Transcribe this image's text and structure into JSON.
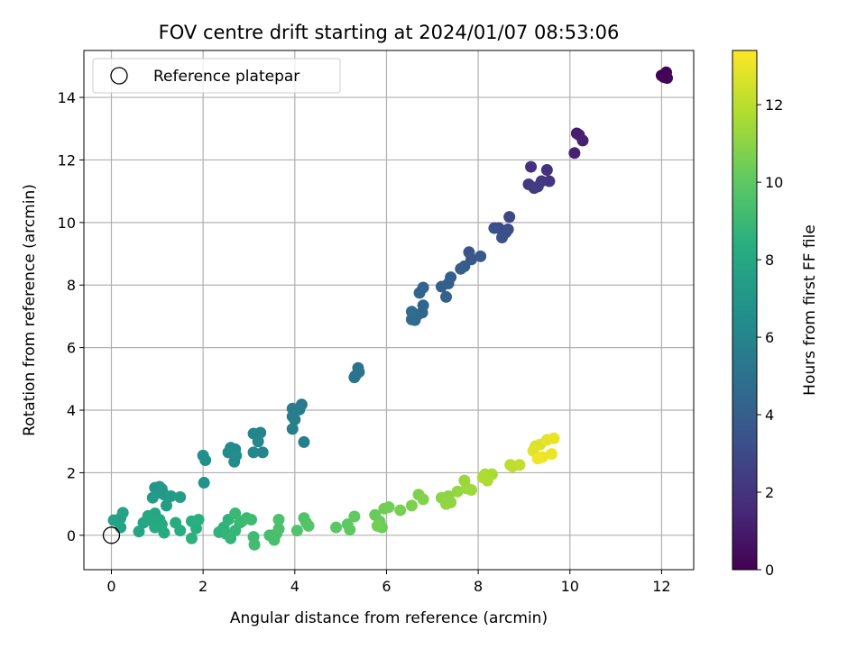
{
  "chart_data": {
    "type": "scatter",
    "title": "FOV centre drift starting at 2024/01/07 08:53:06",
    "xlabel": "Angular distance from reference (arcmin)",
    "ylabel": "Rotation from reference (arcmin)",
    "xlim": [
      -0.6,
      12.7
    ],
    "ylim": [
      -1.1,
      15.5
    ],
    "xticks": [
      "0",
      "2",
      "4",
      "6",
      "8",
      "10",
      "12"
    ],
    "yticks": [
      "0",
      "2",
      "4",
      "6",
      "8",
      "10",
      "12",
      "14"
    ],
    "grid": true,
    "legend": {
      "position": "top-left",
      "label": "Reference platepar"
    },
    "reference_point": {
      "x": 0,
      "y": 0
    },
    "colorbar": {
      "label": "Hours from first FF file",
      "range": [
        0,
        13.4
      ],
      "ticks": [
        "0",
        "2",
        "4",
        "6",
        "8",
        "10",
        "12"
      ],
      "colormap": "viridis"
    },
    "series": [
      {
        "points": [
          [
            12.0,
            14.7,
            0.0
          ],
          [
            12.1,
            14.8,
            0.1
          ],
          [
            12.05,
            14.65,
            0.15
          ],
          [
            12.12,
            14.62,
            0.2
          ],
          [
            10.15,
            12.85,
            1.0
          ],
          [
            10.2,
            12.8,
            1.1
          ],
          [
            10.28,
            12.62,
            1.2
          ],
          [
            10.1,
            12.22,
            1.3
          ],
          [
            9.15,
            11.78,
            1.8
          ],
          [
            9.5,
            11.68,
            1.9
          ],
          [
            9.55,
            11.32,
            2.0
          ],
          [
            9.38,
            11.32,
            2.1
          ],
          [
            9.1,
            11.22,
            2.2
          ],
          [
            9.22,
            11.1,
            2.3
          ],
          [
            9.3,
            11.15,
            2.35
          ],
          [
            8.68,
            10.18,
            2.9
          ],
          [
            8.45,
            9.82,
            3.0
          ],
          [
            8.65,
            9.78,
            3.1
          ],
          [
            8.6,
            9.68,
            3.2
          ],
          [
            8.52,
            9.52,
            3.25
          ],
          [
            8.35,
            9.82,
            3.3
          ],
          [
            7.8,
            9.05,
            3.5
          ],
          [
            7.85,
            8.82,
            3.6
          ],
          [
            8.05,
            8.92,
            3.7
          ],
          [
            7.7,
            8.6,
            3.8
          ],
          [
            7.62,
            8.52,
            3.9
          ],
          [
            7.4,
            8.25,
            4.0
          ],
          [
            7.35,
            8.05,
            4.1
          ],
          [
            7.2,
            7.95,
            4.15
          ],
          [
            7.3,
            7.62,
            4.2
          ],
          [
            6.8,
            7.92,
            4.3
          ],
          [
            6.72,
            7.75,
            4.35
          ],
          [
            6.8,
            7.35,
            4.4
          ],
          [
            6.78,
            7.12,
            4.45
          ],
          [
            6.68,
            7.05,
            4.5
          ],
          [
            6.55,
            6.9,
            4.6
          ],
          [
            6.62,
            6.88,
            4.65
          ],
          [
            6.55,
            7.15,
            4.7
          ],
          [
            5.32,
            5.1,
            5.0
          ],
          [
            5.38,
            5.35,
            5.05
          ],
          [
            5.4,
            5.22,
            5.1
          ],
          [
            5.3,
            5.05,
            5.15
          ],
          [
            4.15,
            4.18,
            5.4
          ],
          [
            3.95,
            4.05,
            5.5
          ],
          [
            4.1,
            4.02,
            5.55
          ],
          [
            3.95,
            3.8,
            5.6
          ],
          [
            4.0,
            3.7,
            5.65
          ],
          [
            3.95,
            3.4,
            5.7
          ],
          [
            4.2,
            2.98,
            5.75
          ],
          [
            3.25,
            3.28,
            6.0
          ],
          [
            3.1,
            3.25,
            6.05
          ],
          [
            3.2,
            3.0,
            6.1
          ],
          [
            3.3,
            2.65,
            6.15
          ],
          [
            3.1,
            2.65,
            6.2
          ],
          [
            2.6,
            2.8,
            6.3
          ],
          [
            2.7,
            2.75,
            6.35
          ],
          [
            2.55,
            2.65,
            6.4
          ],
          [
            2.72,
            2.55,
            6.45
          ],
          [
            2.68,
            2.35,
            6.5
          ],
          [
            2.0,
            2.55,
            6.6
          ],
          [
            2.05,
            2.4,
            6.65
          ],
          [
            2.02,
            1.68,
            6.75
          ],
          [
            0.95,
            1.52,
            7.0
          ],
          [
            1.05,
            1.55,
            7.05
          ],
          [
            1.1,
            1.48,
            7.1
          ],
          [
            1.0,
            1.35,
            7.15
          ],
          [
            1.15,
            1.3,
            7.2
          ],
          [
            0.9,
            1.2,
            7.25
          ],
          [
            1.3,
            1.25,
            7.3
          ],
          [
            1.5,
            1.22,
            7.35
          ],
          [
            1.2,
            0.95,
            7.4
          ],
          [
            0.25,
            0.72,
            7.6
          ],
          [
            0.2,
            0.55,
            7.65
          ],
          [
            0.05,
            0.48,
            7.7
          ],
          [
            0.2,
            0.25,
            7.75
          ],
          [
            0.6,
            0.12,
            7.8
          ],
          [
            0.7,
            0.4,
            7.85
          ],
          [
            0.85,
            0.48,
            7.9
          ],
          [
            0.95,
            0.7,
            7.95
          ],
          [
            0.8,
            0.62,
            8.0
          ],
          [
            1.05,
            0.5,
            8.05
          ],
          [
            1.1,
            0.35,
            8.1
          ],
          [
            0.95,
            0.25,
            8.15
          ],
          [
            1.15,
            0.08,
            8.2
          ],
          [
            1.4,
            0.4,
            8.25
          ],
          [
            1.5,
            0.15,
            8.3
          ],
          [
            1.75,
            0.45,
            8.35
          ],
          [
            1.85,
            0.22,
            8.4
          ],
          [
            1.9,
            0.5,
            8.45
          ],
          [
            1.75,
            -0.1,
            8.5
          ],
          [
            2.35,
            0.1,
            8.6
          ],
          [
            2.45,
            0.25,
            8.65
          ],
          [
            2.55,
            0.5,
            8.7
          ],
          [
            2.5,
            0.05,
            8.75
          ],
          [
            2.6,
            -0.1,
            8.8
          ],
          [
            2.7,
            0.15,
            8.85
          ],
          [
            2.8,
            0.4,
            8.9
          ],
          [
            2.7,
            0.7,
            8.95
          ],
          [
            2.95,
            0.55,
            9.0
          ],
          [
            2.85,
            0.45,
            9.05
          ],
          [
            3.05,
            0.5,
            9.1
          ],
          [
            3.1,
            -0.05,
            9.15
          ],
          [
            3.12,
            -0.3,
            9.2
          ],
          [
            3.45,
            0.0,
            9.3
          ],
          [
            3.6,
            0.05,
            9.35
          ],
          [
            3.55,
            -0.15,
            9.4
          ],
          [
            3.65,
            0.2,
            9.45
          ],
          [
            3.65,
            0.5,
            9.5
          ],
          [
            4.05,
            0.15,
            9.6
          ],
          [
            4.2,
            0.55,
            9.65
          ],
          [
            4.25,
            0.4,
            9.7
          ],
          [
            4.3,
            0.3,
            9.75
          ],
          [
            4.9,
            0.25,
            9.95
          ],
          [
            5.15,
            0.35,
            10.0
          ],
          [
            5.2,
            0.18,
            10.05
          ],
          [
            5.3,
            0.6,
            10.1
          ],
          [
            5.75,
            0.65,
            10.25
          ],
          [
            5.85,
            0.45,
            10.3
          ],
          [
            5.9,
            0.25,
            10.35
          ],
          [
            5.95,
            0.85,
            10.4
          ],
          [
            6.05,
            0.9,
            10.45
          ],
          [
            5.8,
            0.3,
            10.5
          ],
          [
            6.3,
            0.8,
            10.6
          ],
          [
            6.55,
            0.95,
            10.7
          ],
          [
            6.7,
            1.3,
            10.75
          ],
          [
            6.8,
            1.15,
            10.8
          ],
          [
            7.2,
            1.2,
            11.0
          ],
          [
            7.35,
            1.25,
            11.05
          ],
          [
            7.3,
            1.0,
            11.1
          ],
          [
            7.4,
            1.05,
            11.15
          ],
          [
            7.55,
            1.4,
            11.2
          ],
          [
            7.7,
            1.75,
            11.3
          ],
          [
            7.75,
            1.5,
            11.35
          ],
          [
            7.85,
            1.45,
            11.4
          ],
          [
            8.15,
            1.95,
            11.6
          ],
          [
            8.3,
            1.95,
            11.65
          ],
          [
            8.2,
            1.75,
            11.7
          ],
          [
            8.1,
            1.85,
            11.75
          ],
          [
            8.7,
            2.25,
            12.0
          ],
          [
            8.75,
            2.2,
            12.05
          ],
          [
            8.9,
            2.25,
            12.1
          ],
          [
            9.25,
            2.85,
            12.6
          ],
          [
            9.35,
            2.9,
            12.7
          ],
          [
            9.2,
            2.7,
            12.8
          ],
          [
            9.5,
            3.05,
            12.9
          ],
          [
            9.65,
            3.1,
            13.0
          ],
          [
            9.6,
            2.6,
            13.05
          ],
          [
            9.4,
            2.5,
            13.1
          ],
          [
            9.3,
            2.45,
            13.15
          ]
        ]
      }
    ]
  }
}
